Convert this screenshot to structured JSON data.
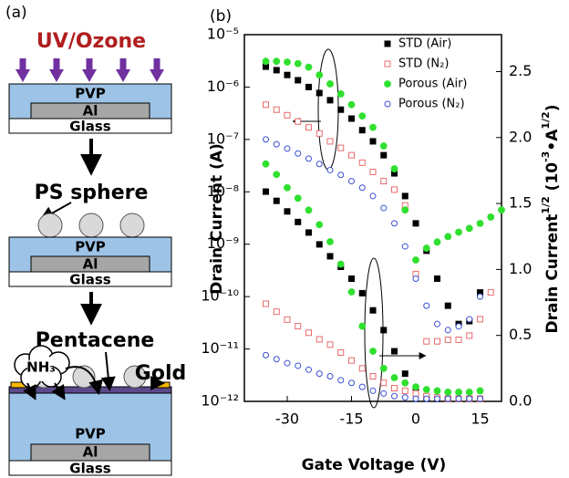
{
  "diagram": {
    "label": "(a)",
    "treatment": "UV/Ozone",
    "stacks": [
      {
        "top": "PVP",
        "gate": "Al",
        "substrate": "Glass"
      },
      {
        "top": "PVP",
        "gate": "Al",
        "substrate": "Glass"
      },
      {
        "top": "PVP",
        "gate": "Al",
        "substrate": "Glass"
      }
    ],
    "spheres": "PS sphere",
    "semiconductor": "Pentacene",
    "gas": "NH₃",
    "electrode": "Gold"
  },
  "chart_data": {
    "type": "scatter",
    "panel_label": "(b)",
    "xlabel": "Gate Voltage (V)",
    "ylabel": "Drain Current (A)",
    "y2label": [
      "Drain Current",
      "1/2",
      " (10",
      "-3",
      "•A",
      "1/2",
      ")"
    ],
    "ylog": true,
    "grid": false,
    "legend": "upper right",
    "xlim": [
      -40,
      20
    ],
    "xticks": [
      -30,
      -15,
      0,
      15
    ],
    "ylim": [
      1e-12,
      1e-05
    ],
    "yticks": [
      {
        "value": 1e-05,
        "label": "10⁻⁵"
      },
      {
        "value": 1e-06,
        "label": "10⁻⁶"
      },
      {
        "value": 1e-07,
        "label": "10⁻⁷"
      },
      {
        "value": 1e-08,
        "label": "10⁻⁸"
      },
      {
        "value": 1e-09,
        "label": "10⁻⁹"
      },
      {
        "value": 1e-10,
        "label": "10⁻¹⁰"
      },
      {
        "value": 1e-11,
        "label": "10⁻¹¹"
      },
      {
        "value": 1e-12,
        "label": "10⁻¹²"
      }
    ],
    "y2lim": [
      0,
      2.78
    ],
    "y2ticks": [
      {
        "value": 0,
        "label": "0.0"
      },
      0.5,
      {
        "value": 1,
        "label": "1.0"
      },
      1.5,
      {
        "value": 2,
        "label": "2.0"
      },
      2.5
    ],
    "x": [
      -35,
      -32.5,
      -30,
      -27.5,
      -25,
      -22.5,
      -20,
      -17.5,
      -15,
      -12.5,
      -10,
      -7.5,
      -5,
      -2.5,
      0,
      2.5,
      5,
      7.5,
      10,
      12.5,
      15,
      17.5,
      20
    ],
    "series": [
      {
        "name": "STD (Air)",
        "color": "#000000",
        "marker": "square",
        "filled": true,
        "values": [
          2.45e-06,
          2.1e-06,
          1.7e-06,
          1.35e-06,
          1e-06,
          7.7e-07,
          5.6e-07,
          3.7e-07,
          2.5e-07,
          1.5e-07,
          9.2e-08,
          5e-08,
          2.25e-08,
          8.3e-09,
          2.5e-09,
          7.5e-10,
          2.2e-10,
          6.7e-11,
          3e-11,
          3.4e-11,
          1.2e-10,
          null,
          null
        ],
        "y2_values": [
          1.59,
          1.52,
          1.44,
          1.36,
          1.28,
          1.19,
          1.1,
          1.02,
          0.93,
          0.82,
          0.69,
          0.54,
          0.38,
          0.21,
          0.07,
          0.03,
          0.02,
          0.02,
          0.02,
          0.02,
          0.02,
          null,
          null
        ]
      },
      {
        "name": "STD (N₂)",
        "color": "#e86b6b",
        "marker": "square",
        "filled": false,
        "values": [
          4.6e-07,
          3.7e-07,
          2.9e-07,
          2.2e-07,
          1.7e-07,
          1.3e-07,
          9.2e-08,
          6.9e-08,
          5e-08,
          3.6e-08,
          2.4e-08,
          1.6e-08,
          1.1e-08,
          5.5e-09,
          2.7e-10,
          1.4e-11,
          1.4e-11,
          1.5e-11,
          1.5e-11,
          1.8e-11,
          3.7e-11,
          1.2e-10,
          null
        ],
        "y2_values": [
          0.74,
          0.68,
          0.62,
          0.57,
          0.52,
          0.47,
          0.43,
          0.37,
          0.31,
          0.25,
          0.19,
          0.14,
          0.1,
          0.08,
          0.06,
          0.04,
          0.03,
          0.02,
          0.02,
          0.02,
          0.02,
          null,
          null
        ]
      },
      {
        "name": "Porous (Air)",
        "color": "#2fe02f",
        "marker": "circle",
        "filled": true,
        "values": [
          3.1e-06,
          3.1e-06,
          3e-06,
          2.8e-06,
          2.4e-06,
          1.7e-06,
          1.15e-06,
          7.4e-07,
          4.6e-07,
          2.8e-07,
          1.7e-07,
          7.5e-08,
          2.75e-08,
          4.5e-09,
          5e-10,
          8.4e-10,
          1.1e-09,
          1.4e-09,
          1.7e-09,
          2e-09,
          2.5e-09,
          3.3e-09,
          4.5e-09
        ],
        "y2_values": [
          1.8,
          1.72,
          1.62,
          1.54,
          1.45,
          1.34,
          1.21,
          1.04,
          0.83,
          0.57,
          0.38,
          0.25,
          0.18,
          0.14,
          0.11,
          0.09,
          0.08,
          0.07,
          0.07,
          0.07,
          0.08,
          null,
          null
        ]
      },
      {
        "name": "Porous (N₂)",
        "color": "#3a4fd0",
        "marker": "circle",
        "filled": false,
        "values": [
          1e-07,
          8.1e-08,
          6.7e-08,
          5.4e-08,
          4.3e-08,
          3.4e-08,
          2.6e-08,
          2.1e-08,
          1.6e-08,
          1.2e-08,
          8.3e-09,
          4.9e-09,
          2.5e-09,
          9.1e-10,
          2.2e-10,
          6.7e-11,
          3e-11,
          2.3e-11,
          2.7e-11,
          3.7e-11,
          1e-10,
          null,
          null
        ],
        "y2_values": [
          0.35,
          0.32,
          0.29,
          0.27,
          0.24,
          0.21,
          0.19,
          0.16,
          0.14,
          0.11,
          0.08,
          0.06,
          0.04,
          0.03,
          0.02,
          0.02,
          0.02,
          0.02,
          0.02,
          0.02,
          0.02,
          null,
          null
        ]
      }
    ]
  }
}
